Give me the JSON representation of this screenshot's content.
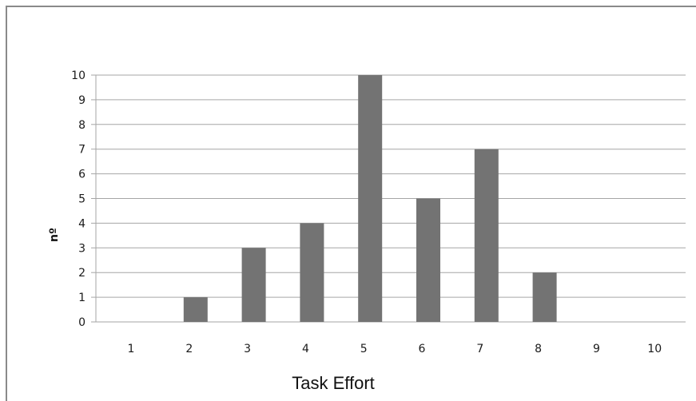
{
  "chart_data": {
    "type": "bar",
    "categories": [
      "1",
      "2",
      "3",
      "4",
      "5",
      "6",
      "7",
      "8",
      "9",
      "10"
    ],
    "values": [
      0,
      1,
      3,
      4,
      10,
      5,
      7,
      2,
      0,
      0
    ],
    "title": "",
    "xlabel": "Task Effort",
    "ylabel": "nº",
    "ylim": [
      0,
      10
    ],
    "yticks": [
      "0",
      "1",
      "2",
      "3",
      "4",
      "5",
      "6",
      "7",
      "8",
      "9",
      "10"
    ],
    "grid": true,
    "bar_color": "#737373",
    "grid_color": "#a6a6a6"
  }
}
